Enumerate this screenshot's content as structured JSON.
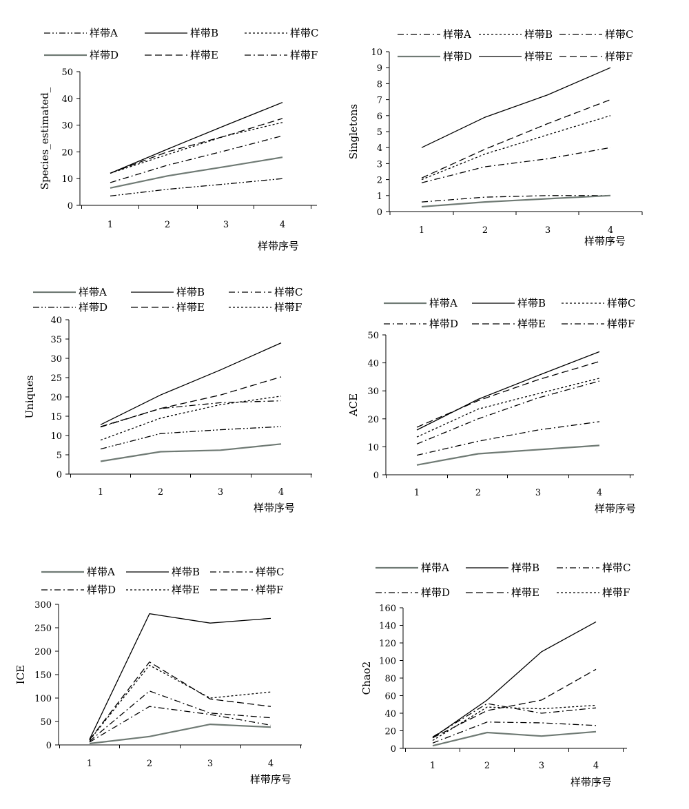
{
  "figure": {
    "x_axis_label": "样带序号"
  },
  "chart_data": [
    {
      "type": "line",
      "ylabel": "Species_estimated_",
      "xlabel": "样带序号",
      "categories": [
        "1",
        "2",
        "3",
        "4"
      ],
      "ylim": [
        0,
        50
      ],
      "yticks": [
        0,
        10,
        20,
        30,
        40,
        50
      ],
      "series": [
        {
          "name": "样带A",
          "style": "dashdotdot",
          "color": "#000000",
          "values": [
            3.5,
            6.0,
            8.0,
            10.0
          ]
        },
        {
          "name": "样带B",
          "style": "solid",
          "color": "#000000",
          "values": [
            12.0,
            21.0,
            30.0,
            38.5
          ]
        },
        {
          "name": "样带C",
          "style": "dotted",
          "color": "#000000",
          "values": [
            12.0,
            19.0,
            26.0,
            31.0
          ]
        },
        {
          "name": "样带D",
          "style": "solid",
          "color": "#6f7a74",
          "values": [
            6.5,
            11.0,
            14.5,
            18.0
          ]
        },
        {
          "name": "样带E",
          "style": "dashed",
          "color": "#000000",
          "values": [
            12.0,
            20.0,
            26.0,
            32.5
          ]
        },
        {
          "name": "样带F",
          "style": "dashdot",
          "color": "#000000",
          "values": [
            8.5,
            15.0,
            20.5,
            26.0
          ]
        }
      ]
    },
    {
      "type": "line",
      "ylabel": "Singletons",
      "xlabel": "样带序号",
      "categories": [
        "1",
        "2",
        "3",
        "4"
      ],
      "ylim": [
        0,
        10
      ],
      "yticks": [
        0,
        1,
        2,
        3,
        4,
        5,
        6,
        7,
        8,
        9,
        10
      ],
      "series": [
        {
          "name": "样带A",
          "style": "dashdot",
          "color": "#000000",
          "values": [
            1.8,
            2.8,
            3.3,
            4.0
          ]
        },
        {
          "name": "样带B",
          "style": "dotted",
          "color": "#000000",
          "values": [
            2.0,
            3.6,
            4.8,
            6.0
          ]
        },
        {
          "name": "样带C",
          "style": "dashdot",
          "color": "#000000",
          "values": [
            0.6,
            0.9,
            1.0,
            1.0
          ]
        },
        {
          "name": "样带D",
          "style": "solid",
          "color": "#6f7a74",
          "values": [
            0.3,
            0.6,
            0.8,
            1.0
          ]
        },
        {
          "name": "样带E",
          "style": "solid",
          "color": "#000000",
          "values": [
            4.0,
            5.9,
            7.3,
            9.0
          ]
        },
        {
          "name": "样带F",
          "style": "dashed",
          "color": "#000000",
          "values": [
            2.1,
            3.9,
            5.5,
            7.0
          ]
        }
      ]
    },
    {
      "type": "line",
      "ylabel": "Uniques",
      "xlabel": "样带序号",
      "categories": [
        "1",
        "2",
        "3",
        "4"
      ],
      "ylim": [
        0,
        40
      ],
      "yticks": [
        0,
        5,
        10,
        15,
        20,
        25,
        30,
        35,
        40
      ],
      "series": [
        {
          "name": "样带A",
          "style": "solid",
          "color": "#6f7a74",
          "values": [
            3.3,
            5.8,
            6.2,
            7.8
          ]
        },
        {
          "name": "样带B",
          "style": "solid",
          "color": "#000000",
          "values": [
            12.8,
            20.5,
            27.0,
            34.0
          ]
        },
        {
          "name": "样带C",
          "style": "dashdot",
          "color": "#000000",
          "values": [
            12.2,
            17.0,
            18.5,
            19.0
          ]
        },
        {
          "name": "样带D",
          "style": "dashdotdot",
          "color": "#000000",
          "values": [
            6.5,
            10.5,
            11.5,
            12.3
          ]
        },
        {
          "name": "样带E",
          "style": "dashed",
          "color": "#000000",
          "values": [
            12.3,
            17.0,
            20.5,
            25.2
          ]
        },
        {
          "name": "样带F",
          "style": "dotted",
          "color": "#000000",
          "values": [
            8.8,
            14.5,
            18.0,
            20.2
          ]
        }
      ]
    },
    {
      "type": "line",
      "ylabel": "ACE",
      "xlabel": "样带序号",
      "categories": [
        "1",
        "2",
        "3",
        "4"
      ],
      "ylim": [
        0,
        50
      ],
      "yticks": [
        0,
        10,
        20,
        30,
        40,
        50
      ],
      "series": [
        {
          "name": "样带A",
          "style": "solid",
          "color": "#6f7a74",
          "values": [
            3.5,
            7.5,
            9.0,
            10.5
          ]
        },
        {
          "name": "样带B",
          "style": "solid",
          "color": "#000000",
          "values": [
            16.0,
            27.0,
            35.5,
            44.0
          ]
        },
        {
          "name": "样带C",
          "style": "dotted",
          "color": "#000000",
          "values": [
            13.5,
            23.5,
            29.0,
            34.5
          ]
        },
        {
          "name": "样带D",
          "style": "dashdot",
          "color": "#000000",
          "values": [
            11.0,
            20.0,
            27.5,
            33.5
          ]
        },
        {
          "name": "样带E",
          "style": "dashed",
          "color": "#000000",
          "values": [
            17.0,
            26.5,
            34.0,
            40.5
          ]
        },
        {
          "name": "样带F",
          "style": "dashdot",
          "color": "#000000",
          "values": [
            7.0,
            12.0,
            16.0,
            19.0
          ]
        }
      ]
    },
    {
      "type": "line",
      "ylabel": "ICE",
      "xlabel": "样带序号",
      "categories": [
        "1",
        "2",
        "3",
        "4"
      ],
      "ylim": [
        0,
        300
      ],
      "yticks": [
        0,
        50,
        100,
        150,
        200,
        250,
        300
      ],
      "series": [
        {
          "name": "样带A",
          "style": "solid",
          "color": "#6f7a74",
          "values": [
            3,
            18,
            44,
            38
          ]
        },
        {
          "name": "样带B",
          "style": "solid",
          "color": "#000000",
          "values": [
            12,
            280,
            260,
            270
          ]
        },
        {
          "name": "样带C",
          "style": "dashdot",
          "color": "#000000",
          "values": [
            8,
            115,
            68,
            58
          ]
        },
        {
          "name": "样带D",
          "style": "dashdot",
          "color": "#000000",
          "values": [
            6,
            82,
            65,
            42
          ]
        },
        {
          "name": "样带E",
          "style": "dotted",
          "color": "#000000",
          "values": [
            10,
            170,
            100,
            113
          ]
        },
        {
          "name": "样带F",
          "style": "dashed",
          "color": "#000000",
          "values": [
            11,
            177,
            98,
            82
          ]
        }
      ]
    },
    {
      "type": "line",
      "ylabel": "Chao2",
      "xlabel": "样带序号",
      "categories": [
        "1",
        "2",
        "3",
        "4"
      ],
      "ylim": [
        0,
        160
      ],
      "yticks": [
        0,
        20,
        40,
        60,
        80,
        100,
        120,
        140,
        160
      ],
      "series": [
        {
          "name": "样带A",
          "style": "solid",
          "color": "#6f7a74",
          "values": [
            3,
            18,
            14,
            19
          ]
        },
        {
          "name": "样带B",
          "style": "solid",
          "color": "#000000",
          "values": [
            12,
            55,
            110,
            144
          ]
        },
        {
          "name": "样带C",
          "style": "dashdot",
          "color": "#000000",
          "values": [
            13,
            51,
            40,
            46
          ]
        },
        {
          "name": "样带D",
          "style": "dashdot",
          "color": "#000000",
          "values": [
            6,
            30,
            29,
            26
          ]
        },
        {
          "name": "样带E",
          "style": "dashed",
          "color": "#000000",
          "values": [
            12,
            43,
            55,
            90
          ]
        },
        {
          "name": "样带F",
          "style": "dotted",
          "color": "#000000",
          "values": [
            9,
            47,
            45,
            49
          ]
        }
      ]
    }
  ]
}
